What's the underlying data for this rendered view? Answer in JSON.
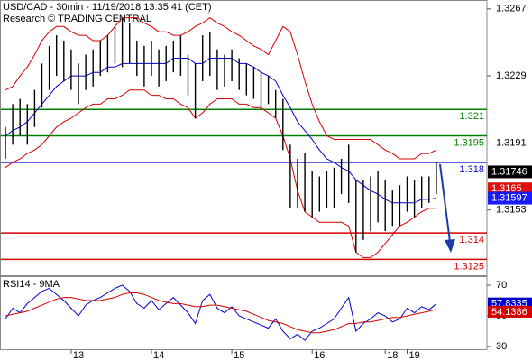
{
  "chart_data": [
    {
      "type": "price",
      "title": "USD/CAD - 30min - 11/19/2018 13:35:41 (CET)",
      "subtitle": "Research © TRADING CENTRAL",
      "categories": [
        null,
        null,
        null,
        null,
        null,
        null,
        null,
        null,
        null,
        "13",
        null,
        null,
        null,
        null,
        null,
        null,
        null,
        null,
        null,
        null,
        "14",
        null,
        null,
        null,
        null,
        null,
        null,
        null,
        null,
        null,
        null,
        "15",
        null,
        null,
        null,
        null,
        null,
        null,
        null,
        null,
        null,
        null,
        "16",
        null,
        null,
        null,
        null,
        null,
        null,
        null,
        null,
        null,
        "18",
        null,
        null,
        "19",
        null,
        null,
        null,
        null
      ],
      "high": [
        1.32,
        1.3213,
        1.3216,
        1.3213,
        1.3221,
        1.3236,
        1.3246,
        1.3252,
        1.3249,
        1.3244,
        1.3236,
        1.3241,
        1.3244,
        1.3249,
        1.3252,
        1.3257,
        1.3262,
        1.3259,
        1.3249,
        1.3246,
        1.3249,
        1.3244,
        1.3246,
        1.3249,
        1.3252,
        1.3241,
        1.3236,
        1.3252,
        1.3254,
        1.3244,
        1.3241,
        1.3244,
        1.3239,
        1.3236,
        1.3234,
        1.3231,
        1.3229,
        1.3221,
        1.3216,
        1.319,
        1.3182,
        1.3185,
        1.3175,
        1.3172,
        1.3175,
        1.3177,
        1.3182,
        1.319,
        1.317,
        1.317,
        1.3172,
        1.3175,
        1.317,
        1.3164,
        1.3167,
        1.3172,
        1.317,
        1.3172,
        1.3172,
        1.318
      ],
      "low": [
        1.3182,
        1.319,
        1.3195,
        1.319,
        1.32,
        1.3211,
        1.3221,
        1.3229,
        1.3226,
        1.3221,
        1.3213,
        1.3221,
        1.3223,
        1.3229,
        1.3231,
        1.3236,
        1.3234,
        1.3236,
        1.3229,
        1.3223,
        1.3229,
        1.3223,
        1.3226,
        1.3231,
        1.3229,
        1.3218,
        1.3205,
        1.3226,
        1.3229,
        1.3221,
        1.3223,
        1.3226,
        1.3221,
        1.3218,
        1.3216,
        1.3211,
        1.3213,
        1.3205,
        1.3187,
        1.3154,
        1.3154,
        1.3152,
        1.3149,
        1.3152,
        1.3154,
        1.3154,
        1.3162,
        1.3157,
        1.3129,
        1.3136,
        1.3141,
        1.3146,
        1.3141,
        1.3144,
        1.3144,
        1.3152,
        1.3149,
        1.3154,
        1.3157,
        1.3162
      ],
      "bar_color": "#000000",
      "series": [
        {
          "color": "#d40000",
          "values": [
            1.3221,
            1.3223,
            1.3229,
            1.3234,
            1.3241,
            1.3249,
            1.3254,
            1.3257,
            1.3257,
            1.3254,
            1.3252,
            1.3252,
            1.3249,
            1.3249,
            1.3252,
            1.3257,
            1.3262,
            1.3262,
            1.3262,
            1.3259,
            1.3257,
            1.3254,
            1.3254,
            1.3252,
            1.3252,
            1.3254,
            1.3257,
            1.3259,
            1.3262,
            1.3259,
            1.3257,
            1.3254,
            1.3252,
            1.3249,
            1.3246,
            1.3244,
            1.3241,
            1.3249,
            1.3257,
            1.3254,
            1.3241,
            1.3226,
            1.3213,
            1.3203,
            1.3195,
            1.3193,
            1.3193,
            1.3193,
            1.3193,
            1.3193,
            1.3193,
            1.319,
            1.3187,
            1.3185,
            1.3182,
            1.3182,
            1.3182,
            1.3185,
            1.3185,
            1.3187
          ]
        },
        {
          "color": "#0000cc",
          "values": [
            1.3195,
            1.3198,
            1.32,
            1.3203,
            1.3208,
            1.3213,
            1.3218,
            1.3223,
            1.3226,
            1.3229,
            1.3229,
            1.3229,
            1.3231,
            1.3231,
            1.3234,
            1.3234,
            1.3236,
            1.3236,
            1.3236,
            1.3236,
            1.3236,
            1.3236,
            1.3236,
            1.3239,
            1.3239,
            1.3239,
            1.3236,
            1.3236,
            1.3239,
            1.3239,
            1.3239,
            1.3239,
            1.3236,
            1.3236,
            1.3234,
            1.3231,
            1.3229,
            1.3226,
            1.3218,
            1.3211,
            1.3203,
            1.3198,
            1.3193,
            1.3187,
            1.3182,
            1.318,
            1.3177,
            1.3175,
            1.317,
            1.3167,
            1.3164,
            1.3162,
            1.3159,
            1.3157,
            1.3157,
            1.3157,
            1.3157,
            1.3159,
            1.3159,
            1.31597
          ]
        },
        {
          "color": "#d40000",
          "values": [
            1.3177,
            1.318,
            1.3182,
            1.3185,
            1.3187,
            1.319,
            1.3195,
            1.32,
            1.3203,
            1.3205,
            1.3208,
            1.3211,
            1.3213,
            1.3213,
            1.3216,
            1.3216,
            1.3218,
            1.3221,
            1.3221,
            1.3221,
            1.3218,
            1.3218,
            1.3216,
            1.3216,
            1.3213,
            1.3211,
            1.3205,
            1.3208,
            1.3213,
            1.3216,
            1.3216,
            1.3216,
            1.3213,
            1.3213,
            1.3211,
            1.3211,
            1.3208,
            1.3205,
            1.3195,
            1.3182,
            1.3164,
            1.3152,
            1.3149,
            1.3146,
            1.3146,
            1.3146,
            1.3146,
            1.3144,
            1.3129,
            1.3126,
            1.3126,
            1.3129,
            1.3134,
            1.3139,
            1.3144,
            1.3146,
            1.3149,
            1.3152,
            1.3154,
            1.3154
          ]
        }
      ],
      "levels": [
        {
          "value": 1.321,
          "color": "#008000"
        },
        {
          "value": 1.3195,
          "color": "#008000"
        },
        {
          "value": 1.318,
          "color": "#0000cc"
        },
        {
          "value": 1.314,
          "color": "#d40000"
        },
        {
          "value": 1.3125,
          "color": "#d40000"
        }
      ],
      "price_labels": [
        {
          "value": 1.31746,
          "color": "#000000"
        },
        {
          "value": 1.3165,
          "color": "#e01010"
        },
        {
          "value": 1.31597,
          "color": "#1a1aff"
        }
      ],
      "ylim": [
        1.3116,
        1.3272
      ],
      "yticks": [
        1.3267,
        1.3229,
        1.3191,
        1.3153
      ]
    },
    {
      "type": "line",
      "title": "RSI14 - 9MA",
      "series": [
        {
          "color": "#0000cc",
          "values": [
            48,
            55,
            52,
            58,
            62,
            66,
            68,
            64,
            60,
            55,
            50,
            57,
            60,
            62,
            65,
            68,
            70,
            66,
            58,
            55,
            60,
            54,
            58,
            62,
            57,
            52,
            45,
            60,
            64,
            55,
            52,
            56,
            50,
            48,
            46,
            44,
            42,
            48,
            40,
            35,
            38,
            34,
            40,
            42,
            45,
            48,
            55,
            62,
            40,
            45,
            48,
            52,
            50,
            46,
            48,
            55,
            52,
            56,
            54,
            57.8335
          ]
        },
        {
          "color": "#d40000",
          "values": [
            50,
            51,
            52,
            53,
            55,
            57,
            59,
            61,
            62,
            62,
            61,
            60,
            60,
            60,
            61,
            62,
            64,
            65,
            65,
            64,
            62,
            60,
            59,
            58,
            58,
            57,
            56,
            56,
            57,
            57,
            56,
            55,
            54,
            53,
            51,
            49,
            47,
            46,
            45,
            43,
            41,
            40,
            39,
            39,
            40,
            41,
            43,
            45,
            45,
            46,
            46,
            47,
            48,
            49,
            49,
            50,
            51,
            52,
            53,
            54.1386
          ]
        }
      ],
      "ylim": [
        28.8,
        74.7
      ],
      "yticks": [
        70,
        50,
        30
      ]
    }
  ]
}
